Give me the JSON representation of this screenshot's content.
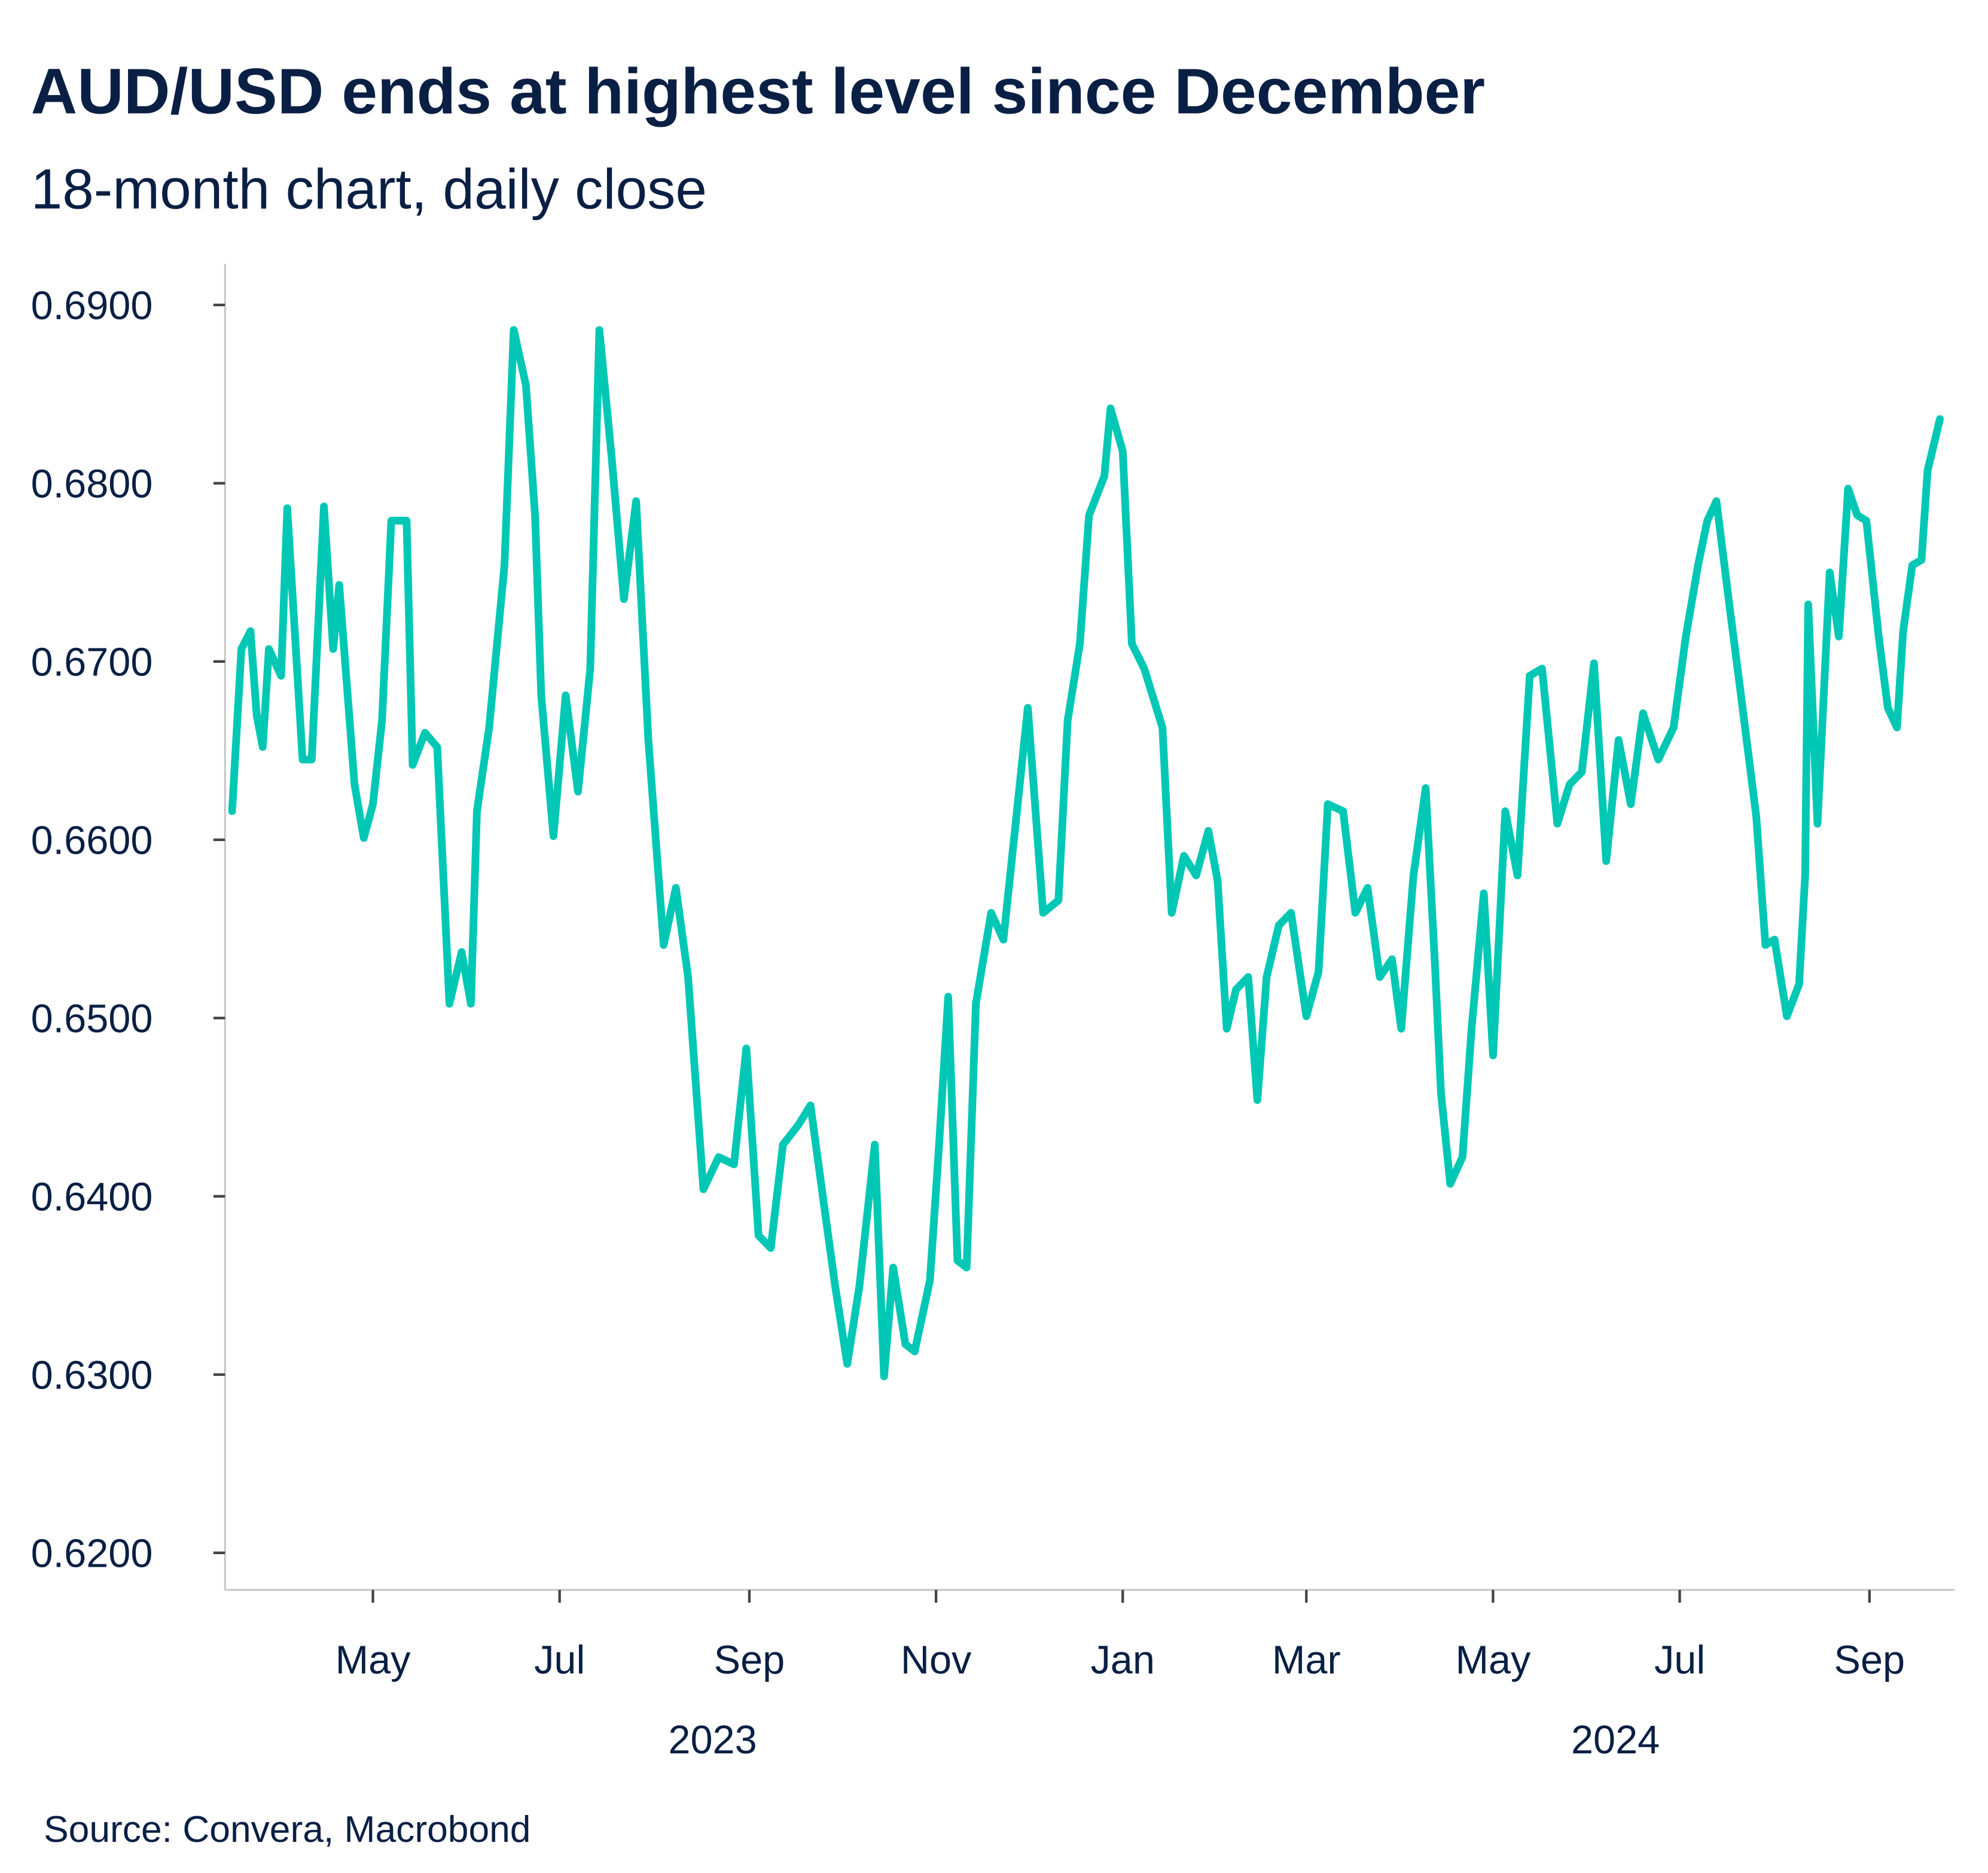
{
  "chart_data": {
    "type": "line",
    "title": "AUD/USD ends at highest level since December",
    "subtitle": "18-month chart, daily close",
    "source": "Source: Convera, Macrobond",
    "ylim": [
      0.62,
      0.69
    ],
    "y_ticks": [
      "0.6900",
      "0.6800",
      "0.6700",
      "0.6600",
      "0.6500",
      "0.6400",
      "0.6300",
      "0.6200"
    ],
    "x_ticks": [
      {
        "label": "May",
        "date": "2023-05-01"
      },
      {
        "label": "Jul",
        "date": "2023-07-01"
      },
      {
        "label": "Sep",
        "date": "2023-09-01"
      },
      {
        "label": "Nov",
        "date": "2023-11-01"
      },
      {
        "label": "Jan",
        "date": "2024-01-01"
      },
      {
        "label": "Mar",
        "date": "2024-03-01"
      },
      {
        "label": "May",
        "date": "2024-05-01"
      },
      {
        "label": "Jul",
        "date": "2024-07-01"
      },
      {
        "label": "Sep",
        "date": "2024-09-01"
      }
    ],
    "year_labels": [
      {
        "label": "2023",
        "date": "2023-08-20"
      },
      {
        "label": "2024",
        "date": "2024-06-10"
      }
    ],
    "grid": false,
    "line_color": "#00C8B4",
    "series": [
      {
        "points": [
          [
            "2023-03-16",
            0.6616
          ],
          [
            "2023-03-19",
            0.6707
          ],
          [
            "2023-03-22",
            0.6717
          ],
          [
            "2023-03-24",
            0.667
          ],
          [
            "2023-03-26",
            0.6652
          ],
          [
            "2023-03-28",
            0.6707
          ],
          [
            "2023-04-01",
            0.6692
          ],
          [
            "2023-04-03",
            0.6786
          ],
          [
            "2023-04-08",
            0.6645
          ],
          [
            "2023-04-11",
            0.6645
          ],
          [
            "2023-04-15",
            0.6787
          ],
          [
            "2023-04-18",
            0.6707
          ],
          [
            "2023-04-20",
            0.6743
          ],
          [
            "2023-04-25",
            0.6631
          ],
          [
            "2023-04-28",
            0.6601
          ],
          [
            "2023-05-01",
            0.662
          ],
          [
            "2023-05-04",
            0.6667
          ],
          [
            "2023-05-07",
            0.6779
          ],
          [
            "2023-05-12",
            0.6779
          ],
          [
            "2023-05-14",
            0.6642
          ],
          [
            "2023-05-18",
            0.666
          ],
          [
            "2023-05-22",
            0.6652
          ],
          [
            "2023-05-26",
            0.6508
          ],
          [
            "2023-05-30",
            0.6537
          ],
          [
            "2023-06-02",
            0.6508
          ],
          [
            "2023-06-04",
            0.6616
          ],
          [
            "2023-06-08",
            0.6663
          ],
          [
            "2023-06-13",
            0.6754
          ],
          [
            "2023-06-16",
            0.6886
          ],
          [
            "2023-06-20",
            0.6855
          ],
          [
            "2023-06-23",
            0.6782
          ],
          [
            "2023-06-25",
            0.6681
          ],
          [
            "2023-06-29",
            0.6602
          ],
          [
            "2023-07-03",
            0.6681
          ],
          [
            "2023-07-07",
            0.6627
          ],
          [
            "2023-07-11",
            0.6696
          ],
          [
            "2023-07-14",
            0.6886
          ],
          [
            "2023-07-18",
            0.6815
          ],
          [
            "2023-07-22",
            0.6735
          ],
          [
            "2023-07-26",
            0.679
          ],
          [
            "2023-07-30",
            0.6656
          ],
          [
            "2023-08-04",
            0.6541
          ],
          [
            "2023-08-08",
            0.6573
          ],
          [
            "2023-08-12",
            0.6523
          ],
          [
            "2023-08-17",
            0.6404
          ],
          [
            "2023-08-22",
            0.6422
          ],
          [
            "2023-08-27",
            0.6418
          ],
          [
            "2023-08-31",
            0.6483
          ],
          [
            "2023-09-04",
            0.6378
          ],
          [
            "2023-09-08",
            0.6371
          ],
          [
            "2023-09-12",
            0.6429
          ],
          [
            "2023-09-17",
            0.644
          ],
          [
            "2023-09-21",
            0.6451
          ],
          [
            "2023-09-25",
            0.64
          ],
          [
            "2023-09-29",
            0.635
          ],
          [
            "2023-10-03",
            0.6306
          ],
          [
            "2023-10-07",
            0.635
          ],
          [
            "2023-10-12",
            0.6429
          ],
          [
            "2023-10-15",
            0.6299
          ],
          [
            "2023-10-18",
            0.636
          ],
          [
            "2023-10-22",
            0.6317
          ],
          [
            "2023-10-25",
            0.6313
          ],
          [
            "2023-10-30",
            0.6353
          ],
          [
            "2023-11-02",
            0.6429
          ],
          [
            "2023-11-05",
            0.6512
          ],
          [
            "2023-11-08",
            0.6364
          ],
          [
            "2023-11-11",
            0.636
          ],
          [
            "2023-11-14",
            0.6508
          ],
          [
            "2023-11-19",
            0.6559
          ],
          [
            "2023-11-23",
            0.6544
          ],
          [
            "2023-11-27",
            0.6609
          ],
          [
            "2023-12-01",
            0.6674
          ],
          [
            "2023-12-06",
            0.6559
          ],
          [
            "2023-12-11",
            0.6566
          ],
          [
            "2023-12-14",
            0.6667
          ],
          [
            "2023-12-18",
            0.671
          ],
          [
            "2023-12-21",
            0.6782
          ],
          [
            "2023-12-26",
            0.6804
          ],
          [
            "2023-12-28",
            0.6842
          ],
          [
            "2024-01-01",
            0.6818
          ],
          [
            "2024-01-04",
            0.671
          ],
          [
            "2024-01-08",
            0.6696
          ],
          [
            "2024-01-14",
            0.6663
          ],
          [
            "2024-01-17",
            0.6559
          ],
          [
            "2024-01-21",
            0.6591
          ],
          [
            "2024-01-25",
            0.658
          ],
          [
            "2024-01-29",
            0.6605
          ],
          [
            "2024-02-01",
            0.6577
          ],
          [
            "2024-02-04",
            0.6494
          ],
          [
            "2024-02-07",
            0.6516
          ],
          [
            "2024-02-11",
            0.6523
          ],
          [
            "2024-02-14",
            0.6454
          ],
          [
            "2024-02-17",
            0.6523
          ],
          [
            "2024-02-21",
            0.6552
          ],
          [
            "2024-02-25",
            0.6559
          ],
          [
            "2024-03-01",
            0.6501
          ],
          [
            "2024-03-05",
            0.6526
          ],
          [
            "2024-03-08",
            0.662
          ],
          [
            "2024-03-13",
            0.6616
          ],
          [
            "2024-03-17",
            0.6559
          ],
          [
            "2024-03-21",
            0.6573
          ],
          [
            "2024-03-25",
            0.6523
          ],
          [
            "2024-03-29",
            0.6533
          ],
          [
            "2024-04-01",
            0.6494
          ],
          [
            "2024-04-05",
            0.658
          ],
          [
            "2024-04-09",
            0.6629
          ],
          [
            "2024-04-12",
            0.653
          ],
          [
            "2024-04-14",
            0.6458
          ],
          [
            "2024-04-17",
            0.6407
          ],
          [
            "2024-04-21",
            0.6422
          ],
          [
            "2024-04-24",
            0.6494
          ],
          [
            "2024-04-28",
            0.657
          ],
          [
            "2024-05-01",
            0.6479
          ],
          [
            "2024-05-05",
            0.6616
          ],
          [
            "2024-05-09",
            0.658
          ],
          [
            "2024-05-13",
            0.6692
          ],
          [
            "2024-05-17",
            0.6696
          ],
          [
            "2024-05-22",
            0.6609
          ],
          [
            "2024-05-26",
            0.6631
          ],
          [
            "2024-05-30",
            0.6638
          ],
          [
            "2024-06-03",
            0.6699
          ],
          [
            "2024-06-07",
            0.6588
          ],
          [
            "2024-06-11",
            0.6656
          ],
          [
            "2024-06-15",
            0.662
          ],
          [
            "2024-06-19",
            0.6671
          ],
          [
            "2024-06-24",
            0.6645
          ],
          [
            "2024-06-29",
            0.6663
          ],
          [
            "2024-07-03",
            0.6714
          ],
          [
            "2024-07-07",
            0.6754
          ],
          [
            "2024-07-10",
            0.6779
          ],
          [
            "2024-07-13",
            0.679
          ],
          [
            "2024-07-17",
            0.6735
          ],
          [
            "2024-07-21",
            0.6681
          ],
          [
            "2024-07-26",
            0.6613
          ],
          [
            "2024-07-29",
            0.6541
          ],
          [
            "2024-08-01",
            0.6544
          ],
          [
            "2024-08-05",
            0.6501
          ],
          [
            "2024-08-09",
            0.6519
          ],
          [
            "2024-08-11",
            0.658
          ],
          [
            "2024-08-12",
            0.6732
          ],
          [
            "2024-08-15",
            0.6609
          ],
          [
            "2024-08-19",
            0.675
          ],
          [
            "2024-08-22",
            0.6714
          ],
          [
            "2024-08-25",
            0.6797
          ],
          [
            "2024-08-28",
            0.6782
          ],
          [
            "2024-08-31",
            0.6779
          ],
          [
            "2024-09-04",
            0.6714
          ],
          [
            "2024-09-07",
            0.6674
          ],
          [
            "2024-09-10",
            0.6663
          ],
          [
            "2024-09-12",
            0.6717
          ],
          [
            "2024-09-15",
            0.6754
          ],
          [
            "2024-09-18",
            0.6757
          ],
          [
            "2024-09-20",
            0.6807
          ],
          [
            "2024-09-24",
            0.6836
          ]
        ]
      }
    ]
  }
}
